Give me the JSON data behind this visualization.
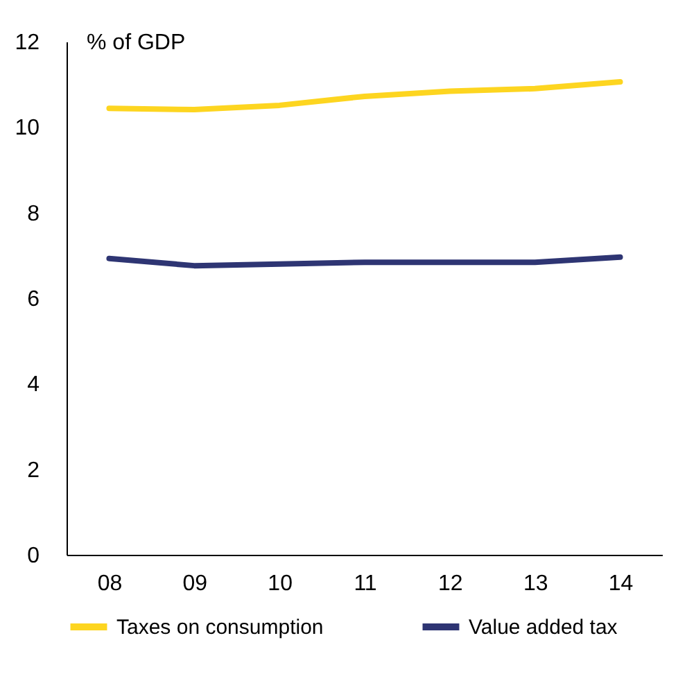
{
  "chart_data": {
    "type": "line",
    "ylabel": "% of GDP",
    "categories": [
      "08",
      "09",
      "10",
      "11",
      "12",
      "13",
      "14"
    ],
    "series": [
      {
        "name": "Taxes on consumption",
        "color": "#fdd520",
        "values": [
          10.44,
          10.41,
          10.51,
          10.72,
          10.84,
          10.9,
          11.06
        ]
      },
      {
        "name": "Value added tax",
        "color": "#2e3573",
        "values": [
          6.93,
          6.76,
          6.8,
          6.84,
          6.84,
          6.84,
          6.96
        ]
      }
    ],
    "ylim": [
      0,
      12
    ],
    "yticks": [
      0,
      2,
      4,
      6,
      8,
      10,
      12
    ],
    "grid": false,
    "legend": "bottom",
    "marker": "none",
    "line_style": "solid"
  }
}
